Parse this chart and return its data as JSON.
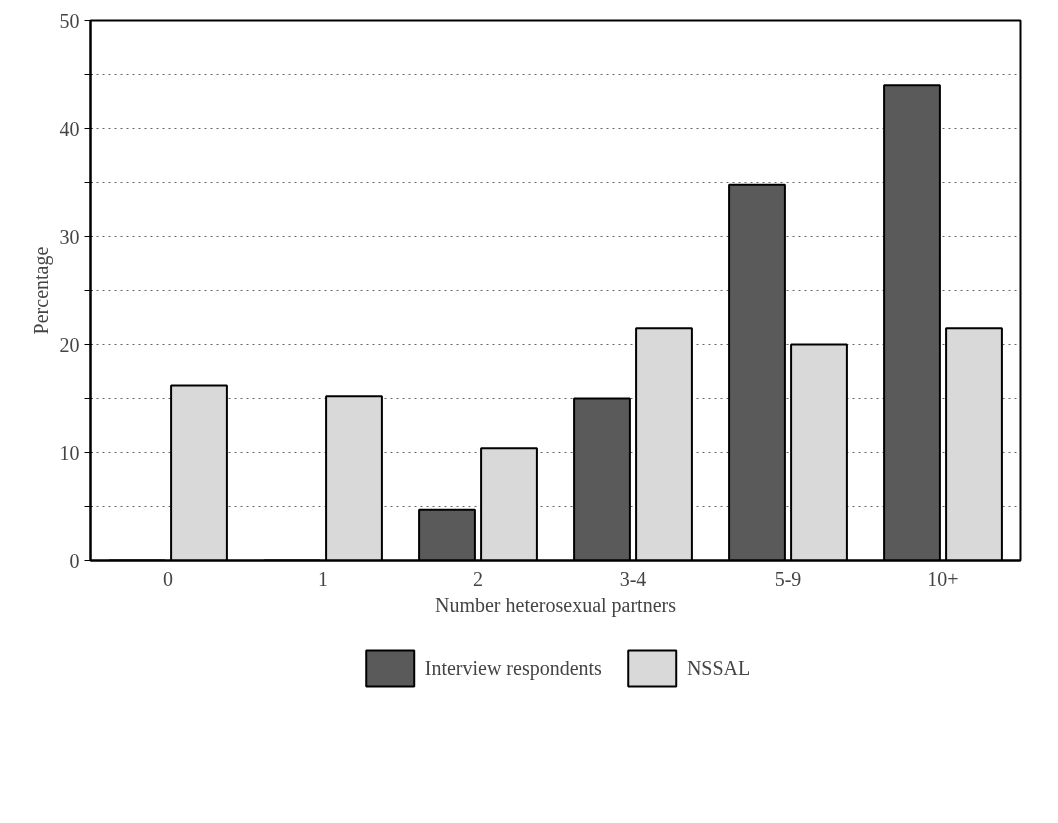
{
  "chart_data": {
    "type": "bar",
    "xlabel": "Number heterosexual partners",
    "ylabel": "Percentage",
    "categories": [
      "0",
      "1",
      "2",
      "3-4",
      "5-9",
      "10+"
    ],
    "series": [
      {
        "name": "Interview respondents",
        "color": "#5a5a5a",
        "values": [
          0,
          0,
          4.7,
          15,
          34.8,
          44
        ]
      },
      {
        "name": "NSSAL",
        "color": "#d9d9d9",
        "values": [
          16.2,
          15.2,
          10.4,
          21.5,
          20,
          21.5
        ]
      }
    ],
    "ylim": [
      0,
      50
    ],
    "yticks": [
      0,
      {
        "value": 5,
        "label": null
      },
      10,
      {
        "value": 15,
        "label": null
      },
      20,
      {
        "value": 25,
        "label": null
      },
      30,
      {
        "value": 35,
        "label": null
      },
      40,
      {
        "value": 45,
        "label": null
      },
      50
    ],
    "grid": "y",
    "legend": "bottom"
  }
}
